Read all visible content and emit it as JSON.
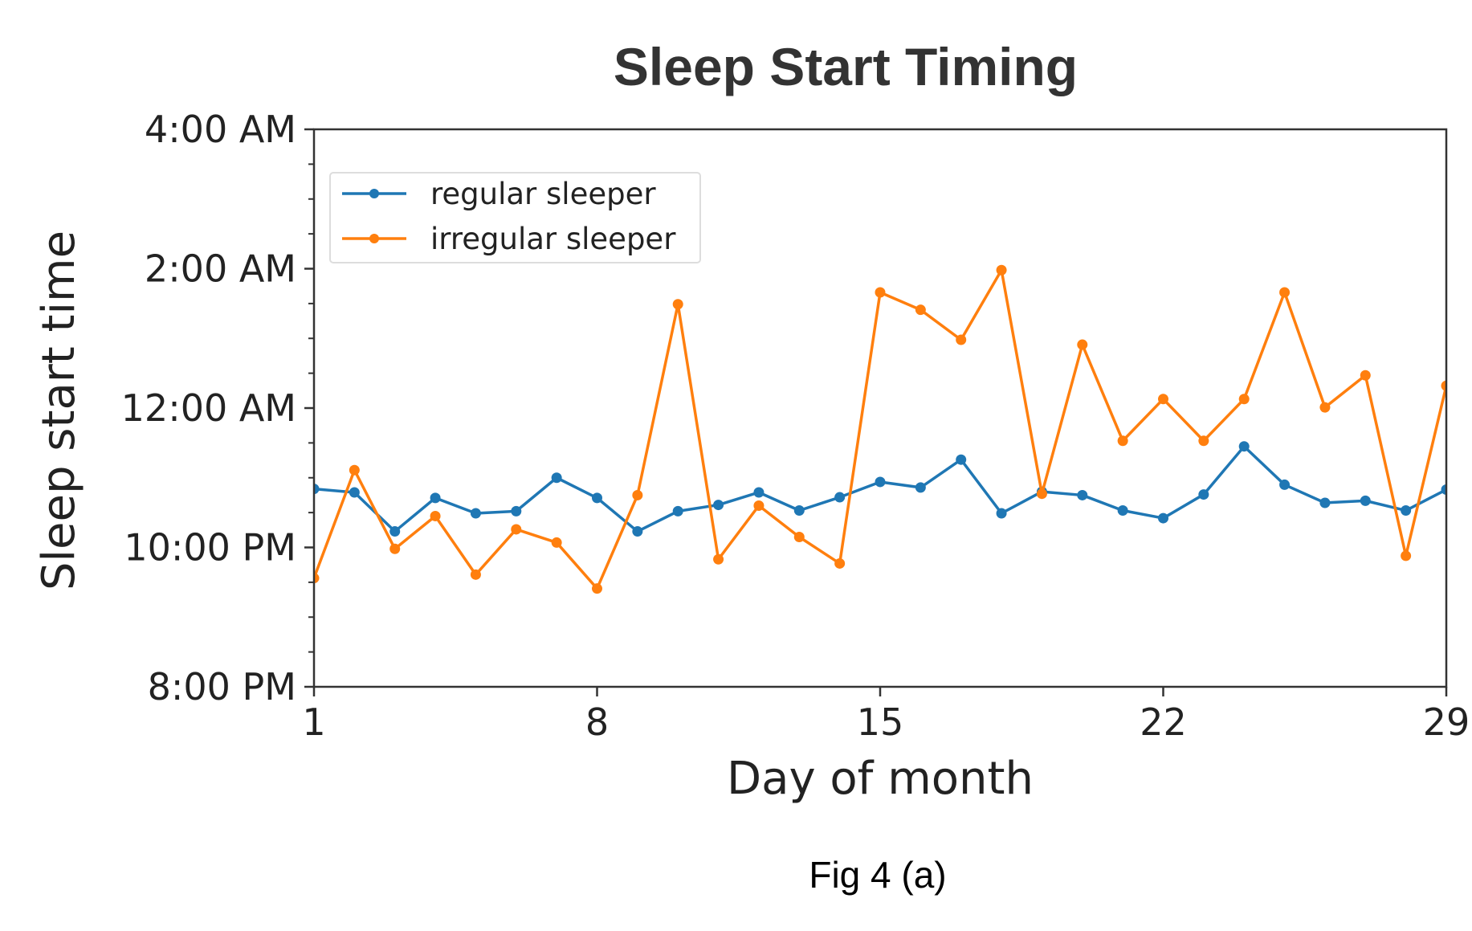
{
  "chart_data": {
    "type": "line",
    "title": "Sleep Start Timing",
    "xlabel": "Day of month",
    "ylabel": "Sleep start time",
    "caption": "Fig 4 (a)",
    "xlim": [
      1,
      29
    ],
    "ylim_hours_after_8pm": [
      0,
      8
    ],
    "x_ticks": [
      1,
      8,
      15,
      22,
      29
    ],
    "x_tick_labels": [
      "1",
      "8",
      "15",
      "22",
      "29"
    ],
    "y_ticks_hours_after_8pm": [
      0,
      2,
      4,
      6,
      8
    ],
    "y_tick_labels": [
      "8:00 PM",
      "10:00 PM",
      "12:00 AM",
      "2:00 AM",
      "4:00 AM"
    ],
    "legend_position": "upper-left",
    "grid": false,
    "x": [
      1,
      2,
      3,
      4,
      5,
      6,
      7,
      8,
      9,
      10,
      11,
      12,
      13,
      14,
      15,
      16,
      17,
      18,
      19,
      20,
      21,
      22,
      23,
      24,
      25,
      26,
      27,
      28,
      29
    ],
    "series": [
      {
        "name": "regular sleeper",
        "color": "#1f77b4",
        "values": [
          2.84,
          2.79,
          2.23,
          2.71,
          2.49,
          2.52,
          3.0,
          2.71,
          2.23,
          2.52,
          2.61,
          2.79,
          2.53,
          2.72,
          2.94,
          2.86,
          3.26,
          2.49,
          2.8,
          2.75,
          2.53,
          2.42,
          2.76,
          3.45,
          2.9,
          2.64,
          2.67,
          2.53,
          2.83
        ]
      },
      {
        "name": "irregular sleeper",
        "color": "#ff7f0e",
        "values": [
          1.56,
          3.11,
          1.98,
          2.45,
          1.61,
          2.26,
          2.07,
          1.41,
          2.75,
          5.49,
          1.83,
          2.6,
          2.15,
          1.77,
          5.66,
          5.41,
          4.98,
          5.98,
          2.77,
          4.91,
          3.53,
          4.13,
          3.53,
          4.13,
          5.66,
          4.01,
          4.47,
          1.88,
          4.32
        ]
      }
    ]
  }
}
